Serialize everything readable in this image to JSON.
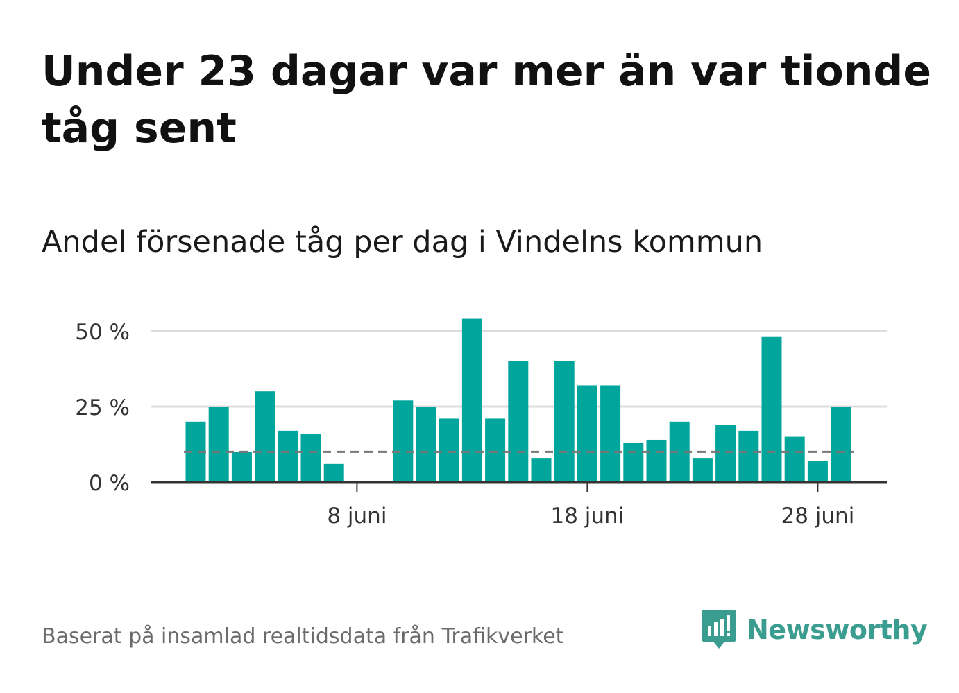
{
  "title": "Under 23 dagar var mer än var tionde tåg sent",
  "subtitle": "Andel försenade tåg per dag i Vindelns kommun",
  "source": "Baserat på insamlad realtidsdata från Trafikverket",
  "brand": {
    "name": "Newsworthy",
    "icon": "newsworthy-logo-icon"
  },
  "colors": {
    "bar": "#00a59b",
    "reference": "#777777",
    "grid": "#dddddd",
    "axis": "#333333",
    "brand": "#3b9d90"
  },
  "chart_data": {
    "type": "bar",
    "title": "Under 23 dagar var mer än var tionde tåg sent",
    "subtitle": "Andel försenade tåg per dag i Vindelns kommun",
    "xlabel": "",
    "ylabel": "",
    "x": [
      1,
      2,
      3,
      4,
      5,
      6,
      7,
      8,
      9,
      10,
      11,
      12,
      13,
      14,
      15,
      16,
      17,
      18,
      19,
      20,
      21,
      22,
      23,
      24,
      25,
      26,
      27,
      28,
      29,
      30
    ],
    "values": [
      20,
      25,
      10,
      30,
      17,
      16,
      6,
      0,
      0,
      27,
      25,
      21,
      54,
      21,
      40,
      8,
      40,
      32,
      32,
      13,
      14,
      20,
      8,
      19,
      17,
      48,
      15,
      7,
      25,
      null
    ],
    "reference_line": 10,
    "ylim": [
      0,
      55
    ],
    "yticks": [
      0,
      25,
      50
    ],
    "ytick_labels": [
      "0 %",
      "25 %",
      "50 %"
    ],
    "xticks": [
      8,
      18,
      28
    ],
    "xtick_labels": [
      "8 juni",
      "18 juni",
      "28 juni"
    ],
    "grid": true
  }
}
